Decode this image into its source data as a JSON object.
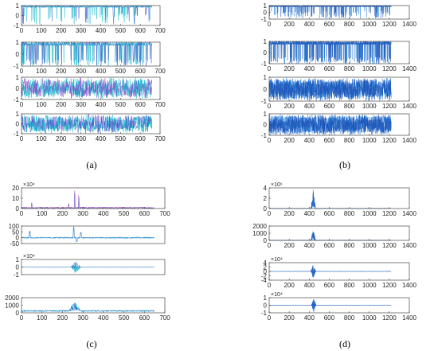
{
  "chart_data": [
    {
      "type": "line",
      "panel": "a",
      "label": "(a)",
      "subplots": [
        {
          "xlim": [
            0,
            700
          ],
          "ylim": [
            -1,
            1
          ],
          "yticks": [
            "1",
            "0",
            "-1"
          ],
          "xticks": [
            "0",
            "100",
            "200",
            "300",
            "400",
            "500",
            "600",
            "700"
          ],
          "exponent": "",
          "n": 660,
          "style": "near-one",
          "colors": [
            "#00b5c8",
            "#3f56c8"
          ]
        },
        {
          "xlim": [
            0,
            700
          ],
          "ylim": [
            -1,
            1
          ],
          "yticks": [
            "1",
            "0",
            "-1"
          ],
          "xticks": [
            "0",
            "100",
            "200",
            "300",
            "400",
            "500",
            "600",
            "700"
          ],
          "exponent": "",
          "n": 660,
          "style": "sparse-drop",
          "colors": [
            "#00b5c8",
            "#3f56c8"
          ]
        },
        {
          "xlim": [
            0,
            700
          ],
          "ylim": [
            -1,
            1
          ],
          "yticks": [
            "1",
            "0",
            "-1"
          ],
          "xticks": [
            "0",
            "100",
            "200",
            "300",
            "400",
            "500",
            "600",
            "700"
          ],
          "exponent": "",
          "n": 660,
          "style": "dense",
          "colors": [
            "#00b5c8",
            "#8b3fc8"
          ]
        },
        {
          "xlim": [
            0,
            700
          ],
          "ylim": [
            -1,
            1
          ],
          "yticks": [
            "1",
            "0",
            "-1"
          ],
          "xticks": [
            "0",
            "100",
            "200",
            "300",
            "400",
            "500",
            "600",
            "700"
          ],
          "exponent": "",
          "n": 660,
          "style": "dense",
          "colors": [
            "#00b5c8",
            "#5a3fc8"
          ]
        }
      ]
    },
    {
      "type": "line",
      "panel": "b",
      "label": "(b)",
      "subplots": [
        {
          "xlim": [
            0,
            1400
          ],
          "ylim": [
            -1,
            1
          ],
          "yticks": [
            "1",
            "0",
            "-1"
          ],
          "xticks": [
            "0",
            "200",
            "400",
            "600",
            "800",
            "1000",
            "1200",
            "1400"
          ],
          "exponent": "",
          "n": 1220,
          "style": "near-one",
          "colors": [
            "#1f77d4",
            "#1f4fb4"
          ]
        },
        {
          "xlim": [
            0,
            1400
          ],
          "ylim": [
            -1,
            1
          ],
          "yticks": [
            "1",
            "0",
            "-1"
          ],
          "xticks": [
            "0",
            "200",
            "400",
            "600",
            "800",
            "1000",
            "1200",
            "1400"
          ],
          "exponent": "",
          "n": 1220,
          "style": "sparse-drop",
          "colors": [
            "#1f77d4",
            "#1f4fb4"
          ]
        },
        {
          "xlim": [
            0,
            1400
          ],
          "ylim": [
            -1,
            1
          ],
          "yticks": [
            "1",
            "0",
            "-1"
          ],
          "xticks": [
            "0",
            "200",
            "400",
            "600",
            "800",
            "1000",
            "1200",
            "1400"
          ],
          "exponent": "",
          "n": 1220,
          "style": "dense",
          "colors": [
            "#1f77d4",
            "#1f4fb4"
          ]
        },
        {
          "xlim": [
            0,
            1400
          ],
          "ylim": [
            -1,
            1
          ],
          "yticks": [
            "1",
            "0",
            "-1"
          ],
          "xticks": [
            "0",
            "200",
            "400",
            "600",
            "800",
            "1000",
            "1200",
            "1400"
          ],
          "exponent": "",
          "n": 1220,
          "style": "dense",
          "colors": [
            "#1f77d4",
            "#1f4fb4"
          ]
        }
      ]
    },
    {
      "type": "line",
      "panel": "c",
      "label": "(c)",
      "subplots": [
        {
          "xlim": [
            0,
            700
          ],
          "ylim": [
            0,
            20
          ],
          "yticks": [
            "20",
            "10",
            "0"
          ],
          "xticks": [
            "0",
            "100",
            "200",
            "300",
            "400",
            "500",
            "600",
            "700"
          ],
          "exponent": "×10⁴",
          "n": 650,
          "style": "positive-spikes",
          "spikes": [
            [
              260,
              18
            ],
            [
              280,
              14
            ],
            [
              50,
              6
            ],
            [
              230,
              5
            ]
          ],
          "colors": [
            "#c83fa5",
            "#3f56c8"
          ]
        },
        {
          "xlim": [
            0,
            700
          ],
          "ylim": [
            -50,
            100
          ],
          "yticks": [
            "100",
            "50",
            "0",
            "-50"
          ],
          "xticks": [],
          "exponent": "",
          "n": 650,
          "style": "bipolar-spikes",
          "spikes": [
            [
              40,
              60
            ],
            [
              255,
              95
            ],
            [
              270,
              -40
            ],
            [
              290,
              50
            ]
          ],
          "colors": [
            "#00b5c8",
            "#3f56c8"
          ]
        },
        {
          "xlim": [
            0,
            700
          ],
          "ylim": [
            -1,
            1
          ],
          "yticks": [
            "1",
            "0",
            "-1"
          ],
          "xticks": [],
          "exponent": "×10⁴",
          "n": 650,
          "style": "burst",
          "center": 265,
          "width": 25,
          "amp": 0.9,
          "colors": [
            "#00b5c8",
            "#3f56c8"
          ]
        },
        {
          "xlim": [
            0,
            700
          ],
          "ylim": [
            0,
            2000
          ],
          "yticks": [
            "2000",
            "1000",
            "0"
          ],
          "xticks": [
            "0",
            "100",
            "200",
            "300",
            "400",
            "500",
            "600",
            "700"
          ],
          "exponent": "",
          "n": 650,
          "style": "noisy-bump",
          "center": 260,
          "width": 30,
          "amp": 1300,
          "colors": [
            "#00b5c8",
            "#3f56c8"
          ]
        }
      ]
    },
    {
      "type": "line",
      "panel": "d",
      "label": "(d)",
      "subplots": [
        {
          "xlim": [
            0,
            1400
          ],
          "ylim": [
            0,
            4
          ],
          "yticks": [
            "4",
            "2",
            "0"
          ],
          "xticks": [
            "0",
            "200",
            "400",
            "600",
            "800",
            "1000",
            "1200",
            "1400"
          ],
          "exponent": "×10⁶",
          "n": 1220,
          "style": "positive-burst",
          "center": 440,
          "width": 25,
          "amp": 3.6,
          "colors": [
            "#1f77d4",
            "#1f4fb4"
          ]
        },
        {
          "xlim": [
            0,
            1400
          ],
          "ylim": [
            0,
            2000
          ],
          "yticks": [
            "2000",
            "1000",
            "0"
          ],
          "xticks": [
            "0",
            "200",
            "400",
            "600",
            "800",
            "1000",
            "1200",
            "1400"
          ],
          "exponent": "",
          "n": 1220,
          "style": "positive-burst",
          "center": 440,
          "width": 25,
          "amp": 1500,
          "colors": [
            "#1f77d4",
            "#1f4fb4"
          ]
        },
        {
          "xlim": [
            0,
            1400
          ],
          "ylim": [
            -4,
            4
          ],
          "yticks": [
            "4",
            "2",
            "0",
            "-2",
            "-4"
          ],
          "xticks": [
            "0",
            "200",
            "400",
            "600",
            "800",
            "1000",
            "1200",
            "1400"
          ],
          "exponent": "×10⁴",
          "n": 1220,
          "style": "burst",
          "center": 440,
          "width": 25,
          "amp": 3.5,
          "colors": [
            "#1f77d4",
            "#1f4fb4"
          ]
        },
        {
          "xlim": [
            0,
            1400
          ],
          "ylim": [
            -1,
            1
          ],
          "yticks": [
            "1",
            "0",
            "-1"
          ],
          "xticks": [
            "0",
            "200",
            "400",
            "600",
            "800",
            "1000",
            "1200",
            "1400"
          ],
          "exponent": "×10⁴",
          "n": 1220,
          "style": "burst",
          "center": 445,
          "width": 25,
          "amp": 0.9,
          "colors": [
            "#1f77d4",
            "#1f4fb4"
          ]
        }
      ]
    }
  ]
}
